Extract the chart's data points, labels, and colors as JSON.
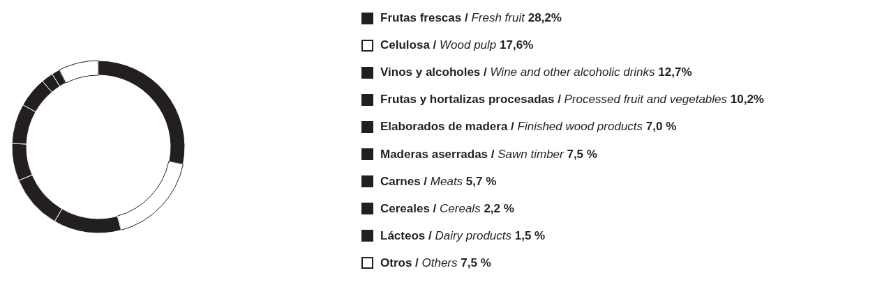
{
  "chart_data": {
    "type": "donut",
    "categories": [
      "Frutas frescas / Fresh fruit",
      "Celulosa / Wood pulp",
      "Vinos y alcoholes / Wine and other alcoholic drinks",
      "Frutas y hortalizas procesadas / Processed fruit and vegetables",
      "Elaborados de madera / Finished wood products",
      "Maderas aserradas / Sawn timber",
      "Carnes / Meats",
      "Cereales / Cereals",
      "Lácteos / Dairy products",
      "Otros / Others"
    ],
    "values": [
      28.2,
      17.6,
      12.7,
      10.2,
      7.0,
      7.5,
      5.7,
      2.2,
      1.5,
      7.5
    ],
    "value_labels": [
      "28,2%",
      "17,6%",
      "12,7%",
      "10,2%",
      "7,0 %",
      "7,5 %",
      "5,7 %",
      "2,2 %",
      "1,5 %",
      "7,5 %"
    ],
    "colors": [
      "#231f20",
      "#ffffff",
      "#231f20",
      "#231f20",
      "#231f20",
      "#231f20",
      "#231f20",
      "#231f20",
      "#231f20",
      "#ffffff"
    ],
    "legend": "right"
  }
}
